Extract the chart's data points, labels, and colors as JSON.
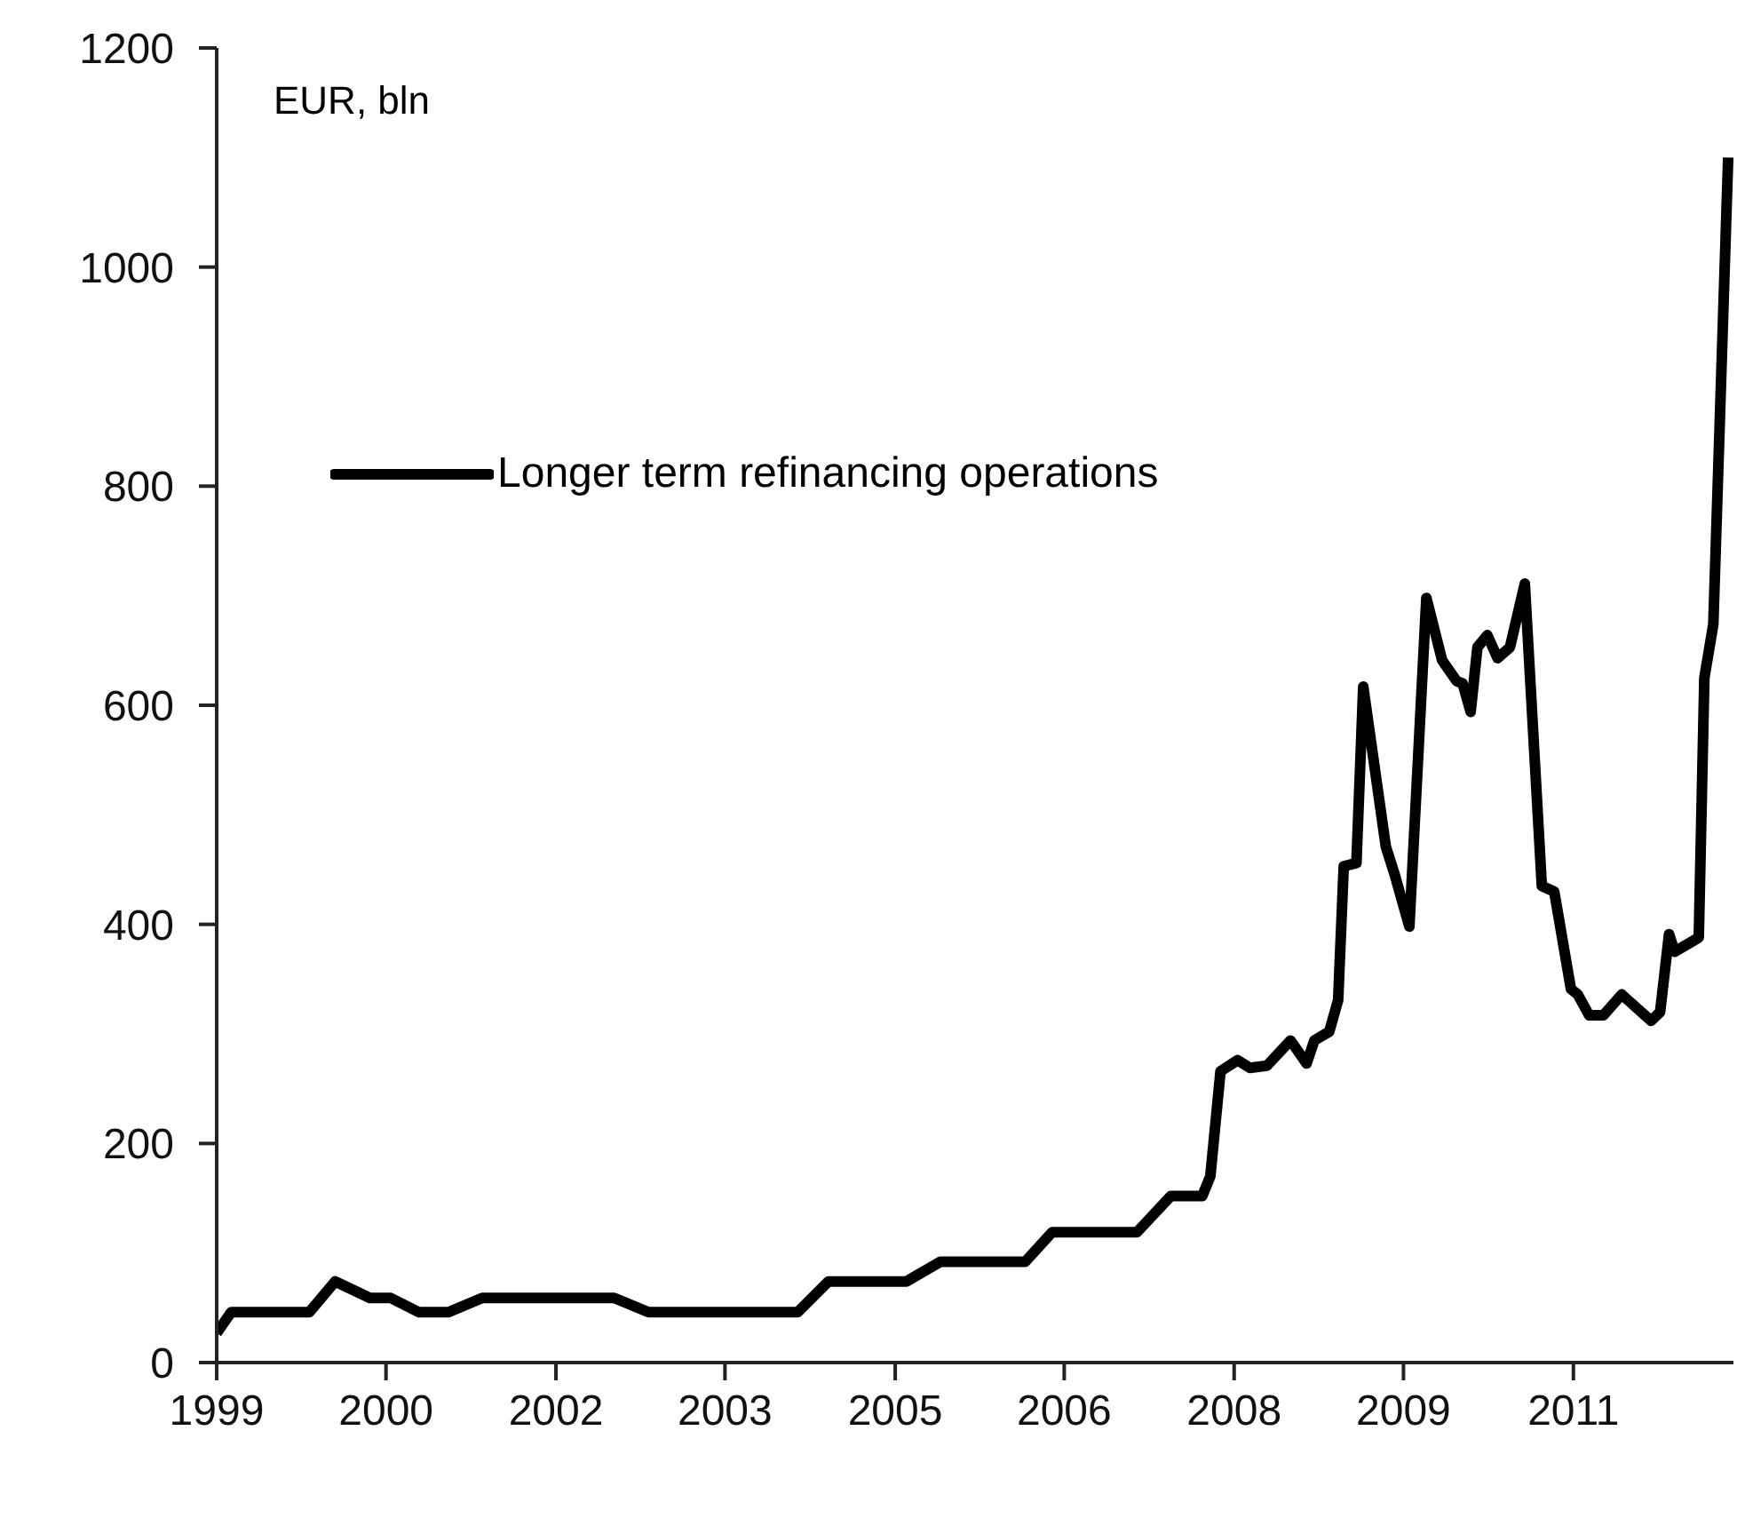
{
  "chart_data": {
    "type": "line",
    "ylabel": "EUR, bln",
    "legend": "top left",
    "marker": "none",
    "line_style": "solid",
    "grid": false,
    "xlim": [
      "1999-01-01",
      "2012-06-01"
    ],
    "xticks": [
      {
        "value": "1999-01-01",
        "label": "1999"
      },
      {
        "value": "2000-07-01",
        "label": "2000"
      },
      {
        "value": "2002-01-01",
        "label": "2002"
      },
      {
        "value": "2003-07-01",
        "label": "2003"
      },
      {
        "value": "2005-01-01",
        "label": "2005"
      },
      {
        "value": "2006-07-01",
        "label": "2006"
      },
      {
        "value": "2008-01-01",
        "label": "2008"
      },
      {
        "value": "2009-07-01",
        "label": "2009"
      },
      {
        "value": "2011-01-01",
        "label": "2011"
      }
    ],
    "ylim": [
      0,
      1200
    ],
    "yticks": [
      0,
      200,
      400,
      600,
      800,
      1000,
      1200
    ],
    "x": [
      "1999-01-01",
      "1999-02-17",
      "1999-10-27",
      "2000-01-19",
      "2000-05-10",
      "2000-07-16",
      "2000-10-15",
      "2001-01-19",
      "2001-05-08",
      "2002-07-08",
      "2002-10-27",
      "2004-02-21",
      "2004-05-30",
      "2005-02-06",
      "2005-05-27",
      "2006-02-25",
      "2006-05-23",
      "2007-02-21",
      "2007-06-10",
      "2007-09-20",
      "2007-10-16",
      "2007-11-18",
      "2008-01-12",
      "2008-02-21",
      "2008-04-16",
      "2008-07-01",
      "2008-08-22",
      "2008-09-16",
      "2008-11-03",
      "2008-12-02",
      "2008-12-20",
      "2009-01-30",
      "2009-02-21",
      "2009-05-05",
      "2009-06-03",
      "2009-07-20",
      "2009-09-13",
      "2009-11-03",
      "2009-12-20",
      "2010-01-08",
      "2010-02-03",
      "2010-02-25",
      "2010-03-29",
      "2010-05-01",
      "2010-06-10",
      "2010-07-28",
      "2010-09-21",
      "2010-10-31",
      "2010-12-24",
      "2011-01-15",
      "2011-02-21",
      "2011-04-08",
      "2011-06-06",
      "2011-09-09",
      "2011-10-08",
      "2011-11-06",
      "2011-11-24",
      "2012-02-10",
      "2012-02-28",
      "2012-03-28",
      "2012-05-15"
    ],
    "series": [
      {
        "name": "Longer term refinancing operations",
        "color": "#000000",
        "values": [
          27,
          46,
          46,
          74,
          59,
          59,
          46,
          46,
          59,
          59,
          46,
          46,
          74,
          74,
          92,
          92,
          119,
          119,
          152,
          152,
          170,
          266,
          276,
          269,
          271,
          294,
          273,
          294,
          302,
          331,
          453,
          456,
          617,
          471,
          445,
          398,
          698,
          641,
          622,
          620,
          594,
          653,
          664,
          643,
          653,
          711,
          435,
          430,
          341,
          336,
          317,
          317,
          336,
          312,
          320,
          391,
          375,
          388,
          625,
          674,
          1100
        ]
      }
    ]
  }
}
